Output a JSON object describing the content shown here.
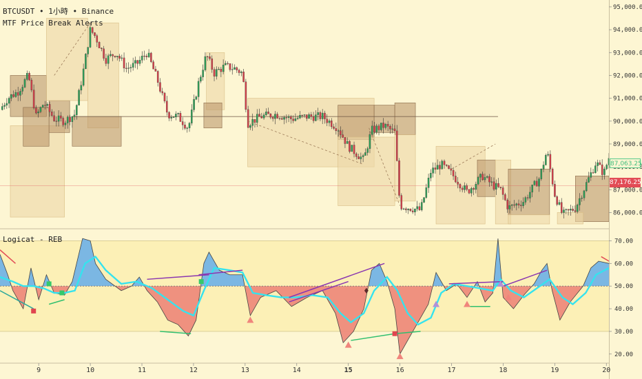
{
  "header": {
    "symbol_line": "BTCUSDT • 1小時 • Binance",
    "indicator_title": "MTF Price Break Alerts"
  },
  "lower_pane": {
    "title": "Logicat - REB"
  },
  "price_tags": {
    "current_green": "87,063.25",
    "current_red": "87,176.25"
  },
  "colors": {
    "background": "#fdf6d3",
    "candle_up": "#2e9e57",
    "candle_down": "#d43f4a",
    "box_light": "#ecd7a6",
    "box_dark": "#b68f64",
    "osc_blue": "#74b3e6",
    "osc_red": "#ee8b7c",
    "signal_cyan": "#35e3ee",
    "divergence_purple": "#8a36b0",
    "band_yellow": "#fbeea9",
    "tag_green": "#56c98b",
    "tag_red": "#e24b55"
  },
  "chart_data": [
    {
      "type": "candlestick",
      "title": "BTCUSDT • 1小時 • Binance",
      "y_ticks": [
        86000,
        87000,
        88000,
        89000,
        90000,
        91000,
        92000,
        93000,
        94000,
        95000
      ],
      "y_tick_labels": [
        "86,000.00",
        "87,000.00",
        "88,000.00",
        "89,000.00",
        "90,000.00",
        "91,000.00",
        "92,000.00",
        "93,000.00",
        "94,000.00",
        "95,000.00"
      ],
      "ylim": [
        85350,
        95300
      ],
      "x_ticks": [
        9,
        10,
        11,
        12,
        13,
        14,
        15,
        16,
        17,
        18,
        19,
        20
      ],
      "x_tick_labels": [
        "9",
        "10",
        "11",
        "12",
        "13",
        "14",
        "15",
        "16",
        "17",
        "18",
        "19",
        "20"
      ],
      "xlim": [
        8.25,
        20.05
      ],
      "last_price": 87176.25,
      "price_points": [
        [
          8.25,
          90500
        ],
        [
          8.4,
          91000
        ],
        [
          8.6,
          91300
        ],
        [
          8.8,
          92000
        ],
        [
          8.95,
          90200
        ],
        [
          9.1,
          90800
        ],
        [
          9.3,
          90100
        ],
        [
          9.5,
          90000
        ],
        [
          9.7,
          90300
        ],
        [
          9.85,
          92000
        ],
        [
          10.0,
          94000
        ],
        [
          10.1,
          93700
        ],
        [
          10.3,
          92700
        ],
        [
          10.5,
          93000
        ],
        [
          10.7,
          92300
        ],
        [
          10.9,
          92500
        ],
        [
          11.1,
          93000
        ],
        [
          11.3,
          91800
        ],
        [
          11.5,
          90300
        ],
        [
          11.7,
          90200
        ],
        [
          11.9,
          89700
        ],
        [
          12.1,
          91700
        ],
        [
          12.25,
          92900
        ],
        [
          12.4,
          92100
        ],
        [
          12.6,
          92400
        ],
        [
          12.8,
          92300
        ],
        [
          12.95,
          92100
        ],
        [
          13.05,
          89900
        ],
        [
          13.3,
          90200
        ],
        [
          13.6,
          90300
        ],
        [
          13.9,
          90100
        ],
        [
          14.2,
          90200
        ],
        [
          14.5,
          90200
        ],
        [
          14.8,
          89700
        ],
        [
          15.0,
          88900
        ],
        [
          15.3,
          88300
        ],
        [
          15.45,
          89600
        ],
        [
          15.7,
          89800
        ],
        [
          15.9,
          89500
        ],
        [
          16.0,
          86300
        ],
        [
          16.2,
          86200
        ],
        [
          16.4,
          86100
        ],
        [
          16.6,
          87800
        ],
        [
          16.8,
          88100
        ],
        [
          17.0,
          87700
        ],
        [
          17.3,
          86900
        ],
        [
          17.6,
          87600
        ],
        [
          17.8,
          87200
        ],
        [
          17.95,
          87000
        ],
        [
          18.1,
          86200
        ],
        [
          18.4,
          86500
        ],
        [
          18.7,
          87500
        ],
        [
          18.85,
          88700
        ],
        [
          19.0,
          86800
        ],
        [
          19.15,
          85900
        ],
        [
          19.4,
          86200
        ],
        [
          19.6,
          87200
        ],
        [
          19.8,
          88200
        ],
        [
          19.95,
          87700
        ],
        [
          20.05,
          88400
        ]
      ],
      "boxes": [
        {
          "x": [
            8.45,
            9.5
          ],
          "y": [
            85800,
            89800
          ],
          "shade": "light"
        },
        {
          "x": [
            8.45,
            9.15
          ],
          "y": [
            90200,
            92000
          ],
          "shade": "dark"
        },
        {
          "x": [
            8.7,
            9.2
          ],
          "y": [
            88900,
            90600
          ],
          "shade": "dark"
        },
        {
          "x": [
            9.2,
            9.6
          ],
          "y": [
            89500,
            90900
          ],
          "shade": "dark"
        },
        {
          "x": [
            9.15,
            9.95
          ],
          "y": [
            90900,
            94500
          ],
          "shade": "light"
        },
        {
          "x": [
            9.95,
            10.55
          ],
          "y": [
            89700,
            94300
          ],
          "shade": "light"
        },
        {
          "x": [
            9.65,
            10.6
          ],
          "y": [
            88900,
            90200
          ],
          "shade": "dark"
        },
        {
          "x": [
            12.25,
            12.6
          ],
          "y": [
            90500,
            93000
          ],
          "shade": "light"
        },
        {
          "x": [
            12.2,
            12.55
          ],
          "y": [
            89700,
            90800
          ],
          "shade": "dark"
        },
        {
          "x": [
            13.05,
            15.5
          ],
          "y": [
            88000,
            91000
          ],
          "shade": "light"
        },
        {
          "x": [
            14.8,
            15.5
          ],
          "y": [
            89200,
            90700
          ],
          "shade": "dark"
        },
        {
          "x": [
            15.5,
            15.9
          ],
          "y": [
            89500,
            90700
          ],
          "shade": "dark"
        },
        {
          "x": [
            14.8,
            15.9
          ],
          "y": [
            86300,
            89300
          ],
          "shade": "light"
        },
        {
          "x": [
            15.9,
            16.3
          ],
          "y": [
            89400,
            90800
          ],
          "shade": "dark"
        },
        {
          "x": [
            15.9,
            16.3
          ],
          "y": [
            86500,
            89400
          ],
          "shade": "light"
        },
        {
          "x": [
            16.7,
            17.65
          ],
          "y": [
            85500,
            88900
          ],
          "shade": "light"
        },
        {
          "x": [
            17.5,
            17.85
          ],
          "y": [
            86700,
            88300
          ],
          "shade": "dark"
        },
        {
          "x": [
            17.85,
            18.15
          ],
          "y": [
            85500,
            88300
          ],
          "shade": "light"
        },
        {
          "x": [
            18.1,
            18.9
          ],
          "y": [
            85900,
            87900
          ],
          "shade": "dark"
        },
        {
          "x": [
            18.1,
            18.9
          ],
          "y": [
            85500,
            85900
          ],
          "shade": "light"
        },
        {
          "x": [
            19.4,
            20.05
          ],
          "y": [
            85600,
            87600
          ],
          "shade": "dark"
        },
        {
          "x": [
            19.05,
            19.55
          ],
          "y": [
            85500,
            86000
          ],
          "shade": "light"
        }
      ],
      "dashed_lines": [
        {
          "from": [
            9.3,
            92000
          ],
          "to": [
            10.0,
            94300
          ]
        },
        {
          "from": [
            13.05,
            90000
          ],
          "to": [
            15.3,
            88100
          ]
        },
        {
          "from": [
            15.4,
            89700
          ],
          "to": [
            16.0,
            86300
          ]
        },
        {
          "from": [
            17.0,
            87900
          ],
          "to": [
            17.85,
            89000
          ]
        }
      ],
      "price_line": [
        9.65,
        17.9,
        90200
      ]
    },
    {
      "type": "area",
      "title": "Logicat - REB",
      "y_ticks": [
        20,
        30,
        40,
        50,
        60,
        70
      ],
      "y_tick_labels": [
        "20.00",
        "30.00",
        "40.00",
        "50.00",
        "60.00",
        "70.00"
      ],
      "ylim": [
        17.5,
        75
      ],
      "midline": 50,
      "band": [
        30,
        70
      ],
      "oscillator": [
        [
          8.25,
          64
        ],
        [
          8.4,
          55
        ],
        [
          8.5,
          48
        ],
        [
          8.7,
          40
        ],
        [
          8.85,
          58
        ],
        [
          9.0,
          44
        ],
        [
          9.15,
          55
        ],
        [
          9.3,
          47
        ],
        [
          9.5,
          46
        ],
        [
          9.65,
          52
        ],
        [
          9.85,
          71
        ],
        [
          10.0,
          70
        ],
        [
          10.1,
          60
        ],
        [
          10.3,
          53
        ],
        [
          10.6,
          48
        ],
        [
          10.8,
          50
        ],
        [
          10.95,
          54
        ],
        [
          11.1,
          48
        ],
        [
          11.3,
          43
        ],
        [
          11.5,
          35
        ],
        [
          11.7,
          33
        ],
        [
          11.9,
          28
        ],
        [
          12.05,
          35
        ],
        [
          12.2,
          60
        ],
        [
          12.3,
          65
        ],
        [
          12.5,
          57
        ],
        [
          12.7,
          55
        ],
        [
          12.95,
          55
        ],
        [
          13.1,
          37
        ],
        [
          13.3,
          45
        ],
        [
          13.6,
          48
        ],
        [
          13.9,
          41
        ],
        [
          14.2,
          45
        ],
        [
          14.5,
          48
        ],
        [
          14.75,
          38
        ],
        [
          14.9,
          25
        ],
        [
          15.1,
          30
        ],
        [
          15.3,
          40
        ],
        [
          15.45,
          57
        ],
        [
          15.6,
          60
        ],
        [
          15.75,
          52
        ],
        [
          15.9,
          40
        ],
        [
          16.0,
          20
        ],
        [
          16.2,
          28
        ],
        [
          16.4,
          36
        ],
        [
          16.55,
          42
        ],
        [
          16.7,
          56
        ],
        [
          16.9,
          48
        ],
        [
          17.1,
          51
        ],
        [
          17.3,
          45
        ],
        [
          17.5,
          52
        ],
        [
          17.65,
          43
        ],
        [
          17.8,
          47
        ],
        [
          17.9,
          71
        ],
        [
          18.0,
          45
        ],
        [
          18.2,
          40
        ],
        [
          18.4,
          46
        ],
        [
          18.6,
          51
        ],
        [
          18.75,
          57
        ],
        [
          18.85,
          60
        ],
        [
          18.95,
          48
        ],
        [
          19.1,
          35
        ],
        [
          19.3,
          43
        ],
        [
          19.55,
          50
        ],
        [
          19.7,
          58
        ],
        [
          19.85,
          61
        ],
        [
          20.05,
          60
        ]
      ],
      "signal": [
        [
          8.25,
          54
        ],
        [
          8.5,
          52
        ],
        [
          8.7,
          50
        ],
        [
          8.9,
          50
        ],
        [
          9.1,
          49
        ],
        [
          9.3,
          47
        ],
        [
          9.5,
          47
        ],
        [
          9.7,
          48
        ],
        [
          9.9,
          60
        ],
        [
          10.1,
          63
        ],
        [
          10.3,
          57
        ],
        [
          10.6,
          51
        ],
        [
          10.9,
          52
        ],
        [
          11.2,
          49
        ],
        [
          11.5,
          44
        ],
        [
          11.8,
          39
        ],
        [
          12.0,
          37
        ],
        [
          12.2,
          48
        ],
        [
          12.4,
          58
        ],
        [
          12.7,
          57
        ],
        [
          12.95,
          56
        ],
        [
          13.15,
          47
        ],
        [
          13.4,
          46
        ],
        [
          13.7,
          45
        ],
        [
          14.0,
          45
        ],
        [
          14.3,
          46
        ],
        [
          14.6,
          45
        ],
        [
          14.85,
          38
        ],
        [
          15.05,
          34
        ],
        [
          15.3,
          38
        ],
        [
          15.5,
          48
        ],
        [
          15.75,
          54
        ],
        [
          15.95,
          48
        ],
        [
          16.15,
          38
        ],
        [
          16.35,
          33
        ],
        [
          16.6,
          36
        ],
        [
          16.8,
          47
        ],
        [
          17.05,
          51
        ],
        [
          17.3,
          50
        ],
        [
          17.55,
          49
        ],
        [
          17.8,
          48
        ],
        [
          17.95,
          53
        ],
        [
          18.15,
          48
        ],
        [
          18.4,
          45
        ],
        [
          18.65,
          49
        ],
        [
          18.9,
          53
        ],
        [
          19.15,
          45
        ],
        [
          19.35,
          42
        ],
        [
          19.6,
          47
        ],
        [
          19.8,
          55
        ],
        [
          20.05,
          58
        ]
      ],
      "divergence_lines": [
        {
          "from": [
            8.25,
            48
          ],
          "to": [
            8.9,
            40
          ],
          "color": "teal"
        },
        {
          "from": [
            9.2,
            42
          ],
          "to": [
            9.5,
            44
          ],
          "color": "green"
        },
        {
          "from": [
            11.35,
            30
          ],
          "to": [
            11.95,
            29
          ],
          "color": "green"
        },
        {
          "from": [
            12.1,
            55
          ],
          "to": [
            12.95,
            57
          ],
          "color": "purple"
        },
        {
          "from": [
            11.1,
            53
          ],
          "to": [
            12.3,
            55
          ],
          "color": "purple"
        },
        {
          "from": [
            13.85,
            45
          ],
          "to": [
            15.7,
            60
          ],
          "color": "purple"
        },
        {
          "from": [
            13.85,
            43
          ],
          "to": [
            15.0,
            52
          ],
          "color": "purple"
        },
        {
          "from": [
            15.05,
            26
          ],
          "to": [
            15.9,
            29
          ],
          "color": "green"
        },
        {
          "from": [
            15.9,
            29
          ],
          "to": [
            16.4,
            30
          ],
          "color": "green"
        },
        {
          "from": [
            16.95,
            51
          ],
          "to": [
            18.0,
            52
          ],
          "color": "purple"
        },
        {
          "from": [
            17.3,
            41
          ],
          "to": [
            17.75,
            41
          ],
          "color": "green"
        },
        {
          "from": [
            18.0,
            50
          ],
          "to": [
            18.85,
            57
          ],
          "color": "purple"
        },
        {
          "from": [
            19.9,
            63
          ],
          "to": [
            20.05,
            61
          ],
          "color": "red"
        },
        {
          "from": [
            8.25,
            66
          ],
          "to": [
            8.55,
            60
          ],
          "color": "red"
        }
      ],
      "markers": [
        {
          "x": 8.9,
          "y": 39,
          "kind": "red-square"
        },
        {
          "x": 9.2,
          "y": 51,
          "kind": "green-square"
        },
        {
          "x": 9.45,
          "y": 47,
          "kind": "green-square"
        },
        {
          "x": 12.15,
          "y": 52,
          "kind": "green-square"
        },
        {
          "x": 13.1,
          "y": 35,
          "kind": "red-triangle"
        },
        {
          "x": 15.0,
          "y": 24,
          "kind": "red-triangle"
        },
        {
          "x": 15.35,
          "y": 48,
          "kind": "dark-diamond"
        },
        {
          "x": 15.9,
          "y": 29,
          "kind": "red-square"
        },
        {
          "x": 16.0,
          "y": 19,
          "kind": "red-triangle"
        },
        {
          "x": 16.7,
          "y": 42,
          "kind": "purple-triangle"
        },
        {
          "x": 17.3,
          "y": 42,
          "kind": "red-triangle"
        },
        {
          "x": 17.95,
          "y": 51,
          "kind": "purple-triangle"
        },
        {
          "x": 18.1,
          "y": 45,
          "kind": "red-triangle"
        }
      ]
    }
  ]
}
